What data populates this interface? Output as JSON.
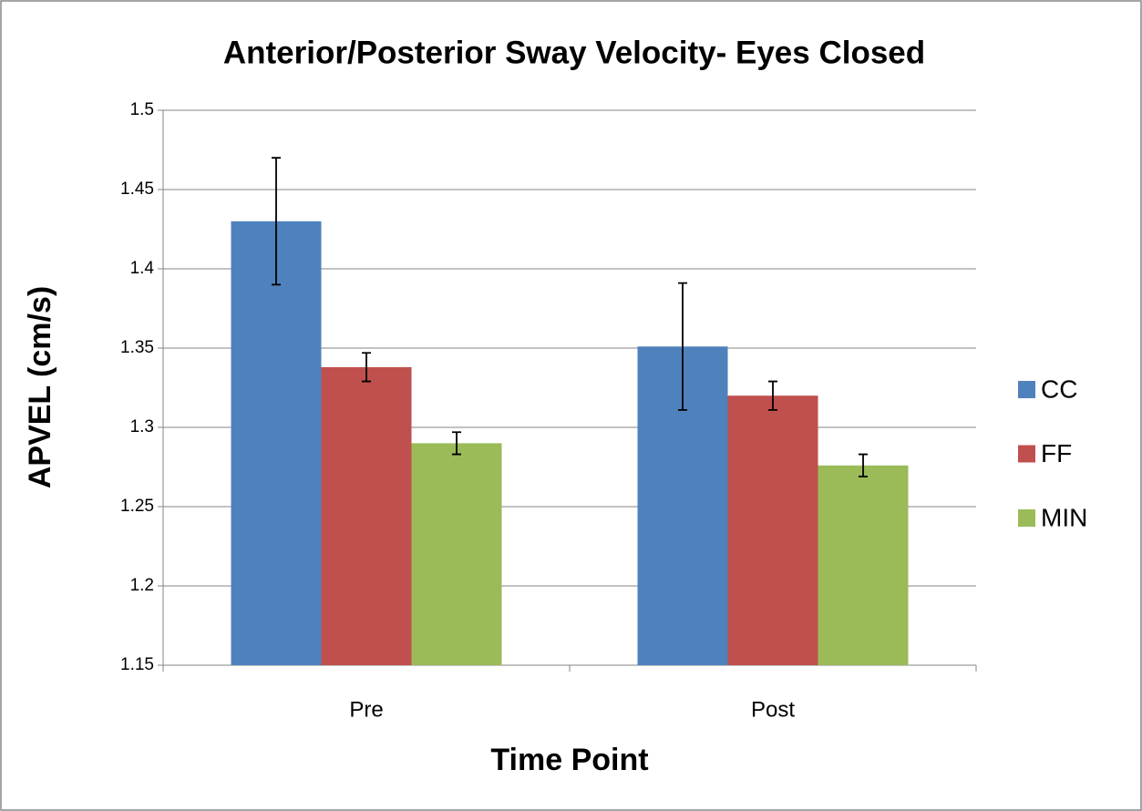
{
  "chart_data": {
    "type": "bar",
    "title": "Anterior/Posterior Sway Velocity- Eyes Closed",
    "x_label": "Time Point",
    "y_label": "APVEL (cm/s)",
    "categories": [
      "Pre",
      "Post"
    ],
    "series": [
      {
        "name": "CC",
        "color": "#4f81bd",
        "values": [
          1.43,
          1.351
        ],
        "errors": [
          0.04,
          0.04
        ]
      },
      {
        "name": "FF",
        "color": "#c0504d",
        "values": [
          1.338,
          1.32
        ],
        "errors": [
          0.009,
          0.009
        ]
      },
      {
        "name": "MIN",
        "color": "#9bbb59",
        "values": [
          1.29,
          1.276
        ],
        "errors": [
          0.007,
          0.007
        ]
      }
    ],
    "ylim": [
      1.15,
      1.5
    ],
    "yticks": [
      1.15,
      1.2,
      1.25,
      1.3,
      1.35,
      1.4,
      1.45,
      1.5
    ],
    "grid": true,
    "legend": "right"
  }
}
